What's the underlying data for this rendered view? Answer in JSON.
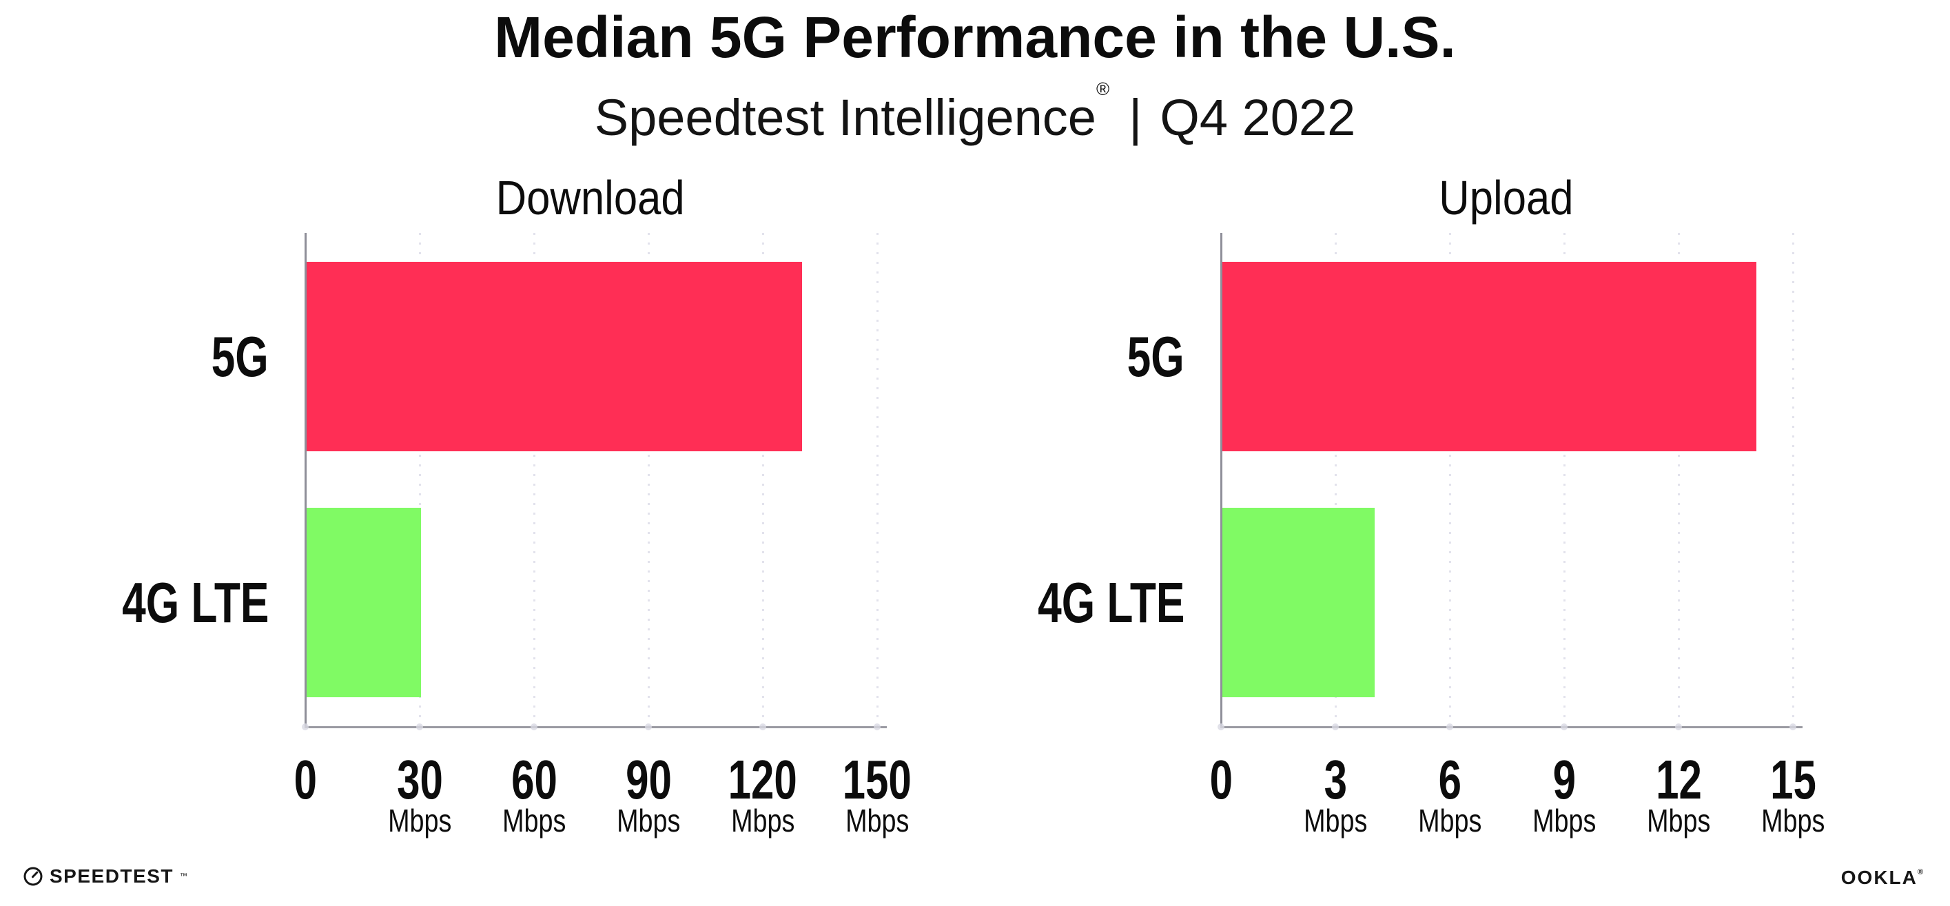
{
  "page": {
    "title": "Median 5G Performance in the U.S.",
    "subtitle": {
      "brand": "Speedtest Intelligence",
      "registered_mark": "®",
      "separator": "|",
      "period": "Q4 2022"
    }
  },
  "colors": {
    "bar_5g": "#ff2e55",
    "bar_4g_lte": "#80fa64",
    "gridline": "#e2e2ec",
    "axis": "#9a9aa2",
    "text": "#0c0c0c"
  },
  "chart_data": [
    {
      "type": "bar",
      "orientation": "horizontal",
      "title": "Download",
      "categories": [
        "5G",
        "4G LTE"
      ],
      "values": [
        130,
        30
      ],
      "unit": "Mbps",
      "xlim": [
        0,
        150
      ],
      "xticks": [
        0,
        30,
        60,
        90,
        120,
        150
      ],
      "xtick_labels": [
        "0",
        "30",
        "60",
        "90",
        "120",
        "150"
      ],
      "bar_colors": [
        "#ff2e55",
        "#80fa64"
      ],
      "grid": "vertical-dotted",
      "legend": "none"
    },
    {
      "type": "bar",
      "orientation": "horizontal",
      "title": "Upload",
      "categories": [
        "5G",
        "4G LTE"
      ],
      "values": [
        14,
        4
      ],
      "unit": "Mbps",
      "xlim": [
        0,
        15
      ],
      "xticks": [
        0,
        3,
        6,
        9,
        12,
        15
      ],
      "xtick_labels": [
        "0",
        "3",
        "6",
        "9",
        "12",
        "15"
      ],
      "bar_colors": [
        "#ff2e55",
        "#80fa64"
      ],
      "grid": "vertical-dotted",
      "legend": "none"
    }
  ],
  "footer": {
    "speedtest_wordmark": "SPEEDTEST",
    "speedtest_trademark": "™",
    "ookla_wordmark": "OOKLA",
    "ookla_registered": "®"
  }
}
